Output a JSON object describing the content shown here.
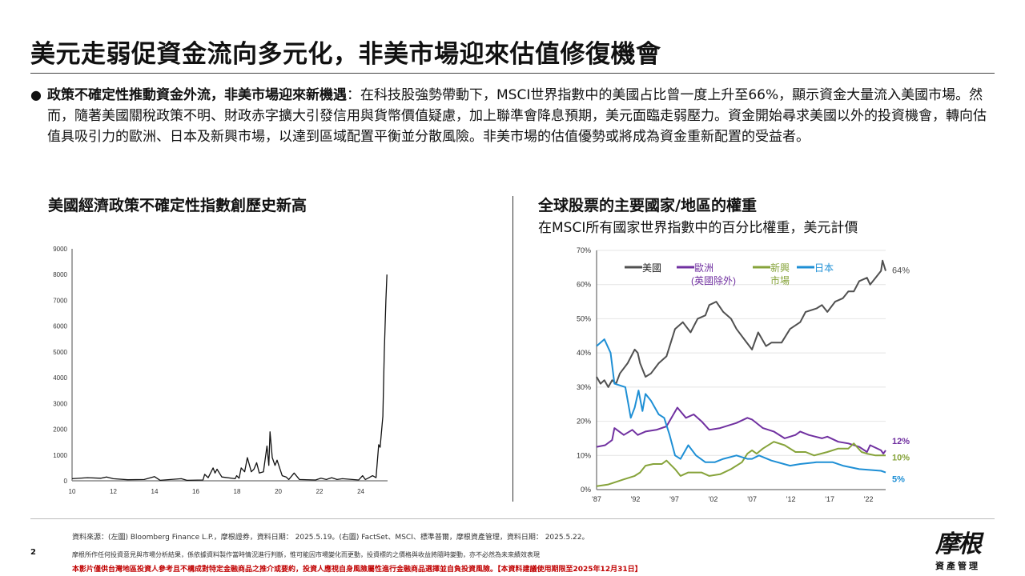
{
  "title": "美元走弱促資金流向多元化，非美市場迎來估值修復機會",
  "bullet": {
    "bold": "政策不確定性推動資金外流，非美市場迎來新機遇",
    "text": "：在科技股強勢帶動下，MSCI世界指數中的美國占比曾一度上升至66%，顯示資金大量流入美國市場。然而，隨著美國關稅政策不明、財政赤字擴大引發信用與貨幣價值疑慮，加上聯準會降息預期，美元面臨走弱壓力。資金開始尋求美國以外的投資機會，轉向估值具吸引力的歐洲、日本及新興市場，以達到區域配置平衡並分散風險。非美市場的估值優勢或將成為資金重新配置的受益者。"
  },
  "left": {
    "heading": "美國經濟政策不確定性指數創歷史新高"
  },
  "right": {
    "heading": "全球股票的主要國家/地區的權重",
    "subtitle": "在MSCI所有國家世界指數中的百分比權重，美元計價"
  },
  "chart_data": [
    {
      "type": "line",
      "grid": false,
      "xlim": [
        2010,
        2025.3
      ],
      "ylim": [
        0,
        9000
      ],
      "xticks": [
        2010,
        2012,
        2014,
        2016,
        2018,
        2020,
        2022,
        2024
      ],
      "xticklabels": [
        "10",
        "12",
        "14",
        "16",
        "18",
        "20",
        "22",
        "24"
      ],
      "yticks": [
        0,
        1000,
        2000,
        3000,
        4000,
        5000,
        6000,
        7000,
        8000,
        9000
      ],
      "yticklabels": [
        "0",
        "1000",
        "2000",
        "3000",
        "4000",
        "5000",
        "6000",
        "7000",
        "8000",
        "9000"
      ],
      "color": "#111111",
      "series": [
        {
          "x": [
            2010.0,
            2010.75,
            2011.4,
            2011.67,
            2012.0,
            2012.7,
            2013.5,
            2014.0,
            2014.27,
            2015.3,
            2015.57,
            2016.35,
            2016.43,
            2016.6,
            2016.84,
            2016.93,
            2017.03,
            2017.26,
            2017.91,
            2017.98,
            2018.1,
            2018.2,
            2018.37,
            2018.5,
            2018.69,
            2018.82,
            2018.95,
            2019.08,
            2019.28,
            2019.45,
            2019.54,
            2019.6,
            2019.71,
            2019.84,
            2019.94,
            2020.19,
            2020.38,
            2020.51,
            2020.77,
            2021.03,
            2021.81,
            2022.07,
            2022.33,
            2022.59,
            2022.85,
            2023.11,
            2023.9,
            2024.09,
            2024.22,
            2024.35,
            2024.57,
            2024.74,
            2024.87,
            2024.94,
            2025.07,
            2025.14,
            2025.22,
            2025.27
          ],
          "y": [
            80,
            120,
            100,
            150,
            80,
            40,
            50,
            160,
            20,
            80,
            20,
            30,
            250,
            120,
            500,
            300,
            450,
            150,
            80,
            200,
            100,
            500,
            350,
            900,
            350,
            450,
            700,
            300,
            350,
            1350,
            600,
            1900,
            900,
            600,
            800,
            200,
            150,
            50,
            300,
            50,
            30,
            100,
            50,
            120,
            50,
            80,
            30,
            200,
            50,
            100,
            200,
            120,
            1400,
            1300,
            2500,
            5000,
            7000,
            8000
          ]
        }
      ]
    },
    {
      "type": "line",
      "grid": true,
      "xlim": [
        1987,
        2024.2
      ],
      "ylim": [
        0,
        70
      ],
      "xticks": [
        1987,
        1992,
        1997,
        2002,
        2007,
        2012,
        2017,
        2022
      ],
      "xticklabels": [
        "'87",
        "'92",
        "'97",
        "'02",
        "'07",
        "'12",
        "'17",
        "'22"
      ],
      "yticks": [
        0,
        10,
        20,
        30,
        40,
        50,
        60,
        70
      ],
      "yticklabels": [
        "0%",
        "10%",
        "20%",
        "30%",
        "40%",
        "50%",
        "60%",
        "70%"
      ],
      "series": [
        {
          "name": "美國",
          "color": "#505050",
          "end_label": "64%",
          "x": [
            1987,
            1987.5,
            1988.0,
            1988.5,
            1989.0,
            1989.5,
            1990.0,
            1991.0,
            1991.9,
            1992.3,
            1992.6,
            1993.3,
            1994.0,
            1995.0,
            1996.0,
            1997.1,
            1998.1,
            1999.1,
            2000.0,
            2001.0,
            2001.5,
            2002.4,
            2003.3,
            2004.3,
            2005.0,
            2006.0,
            2007.0,
            2007.8,
            2008.8,
            2009.5,
            2010.8,
            2011.9,
            2013.2,
            2013.9,
            2015.3,
            2016.0,
            2016.7,
            2017.7,
            2018.7,
            2019.4,
            2020.1,
            2020.8,
            2021.8,
            2022.2,
            2022.9,
            2023.6,
            2023.8,
            2024.2
          ],
          "y": [
            33,
            31,
            32,
            30,
            32,
            31,
            34,
            37,
            41,
            40,
            37,
            33,
            34,
            37,
            39,
            47,
            49,
            46,
            50,
            51,
            54,
            55,
            52,
            50,
            47,
            44,
            41,
            46,
            42,
            43,
            43,
            47,
            49,
            52,
            53,
            54,
            52,
            55,
            56,
            58,
            58,
            61,
            62,
            60,
            62,
            64,
            67,
            64
          ]
        },
        {
          "name": "歐洲",
          "name2": "(英國除外)",
          "color": "#7030a0",
          "end_label": "12%",
          "x": [
            1987,
            1988.1,
            1989.0,
            1989.3,
            1990.5,
            1991.6,
            1992.3,
            1993.3,
            1994.7,
            1996.0,
            1997.4,
            1998.5,
            1999.5,
            2000.5,
            2001.5,
            2002.9,
            2005.0,
            2006.4,
            2007.0,
            2008.4,
            2009.8,
            2011.2,
            2012.6,
            2013.2,
            2014.3,
            2016.0,
            2016.7,
            2018.1,
            2019.4,
            2020.8,
            2021.8,
            2022.2,
            2023.6,
            2023.9,
            2024.2
          ],
          "y": [
            12.5,
            13,
            14.5,
            18,
            16,
            17.5,
            16,
            17,
            17.5,
            18.5,
            24,
            21,
            22,
            20,
            17.5,
            18,
            19.5,
            21,
            20.5,
            18,
            17,
            15,
            16,
            17,
            16,
            15,
            15.5,
            14,
            13.5,
            12.5,
            11,
            13,
            11.5,
            10.5,
            11.5
          ]
        },
        {
          "name": "新興",
          "name2": "市場",
          "color": "#86a33a",
          "end_label": "10%",
          "x": [
            1987,
            1988.5,
            1990.5,
            1991.9,
            1992.6,
            1993.3,
            1994.3,
            1995.4,
            1996.0,
            1997.1,
            1997.8,
            1998.8,
            2000.5,
            2001.5,
            2002.9,
            2004.3,
            2005.7,
            2006.4,
            2007.0,
            2007.6,
            2008.4,
            2009.8,
            2011.2,
            2012.6,
            2013.9,
            2015.0,
            2016.7,
            2018.1,
            2019.4,
            2020.1,
            2021.1,
            2021.8,
            2022.9,
            2024.2
          ],
          "y": [
            1,
            1.5,
            3,
            4,
            5,
            7,
            7.5,
            7.5,
            8.5,
            6,
            4,
            5,
            5,
            4,
            4.5,
            6,
            8,
            10.5,
            11.5,
            10.5,
            12,
            14,
            13,
            11,
            11,
            10,
            11,
            12,
            12,
            13.5,
            11,
            10.5,
            10,
            10
          ]
        },
        {
          "name": "日本",
          "color": "#1e8fd5",
          "end_label": "5%",
          "x": [
            1987,
            1988.0,
            1988.8,
            1989.3,
            1990.7,
            1991.4,
            1991.9,
            1992.4,
            1992.9,
            1993.3,
            1994.0,
            1995.0,
            1995.7,
            1996.4,
            1997.1,
            1997.8,
            1998.8,
            1999.8,
            2001.0,
            2002.2,
            2003.3,
            2005.0,
            2006.4,
            2007.0,
            2007.9,
            2009.5,
            2011.9,
            2013.2,
            2015.3,
            2017.4,
            2018.7,
            2020.8,
            2023.6,
            2024.2
          ],
          "y": [
            42,
            44,
            40,
            31,
            30,
            21,
            24,
            29,
            23,
            28,
            26,
            22,
            21,
            16,
            10,
            9,
            13,
            10,
            8,
            8,
            9,
            10,
            9,
            9,
            10,
            8.5,
            7,
            7.5,
            8,
            8,
            7,
            6,
            5.5,
            5
          ]
        }
      ]
    }
  ],
  "footer": {
    "source": "資料來源：(左圖) Bloomberg Finance L.P.，摩根證券，資料日期： 2025.5.19。(右圖) FactSet、MSCI、標準普爾，摩根資產管理，資料日期： 2025.5.22。",
    "page": "2",
    "disclaimer": "摩根所作任何投資意見與市場分析結果，係依據資料製作當時情況進行判斷，惟可能因市場變化而更動，投資標的之價格與收益將隨時變動，亦不必然為未來績效表現",
    "warning": "本影片僅供台灣地區投資人參考且不構成對特定金融商品之推介或要約，投資人應視自身風險屬性進行金融商品選擇並自負投資風險。【本資料建議使用期限至2025年12月31日】"
  },
  "logo": {
    "mark": "摩根",
    "sub": "資產管理"
  }
}
